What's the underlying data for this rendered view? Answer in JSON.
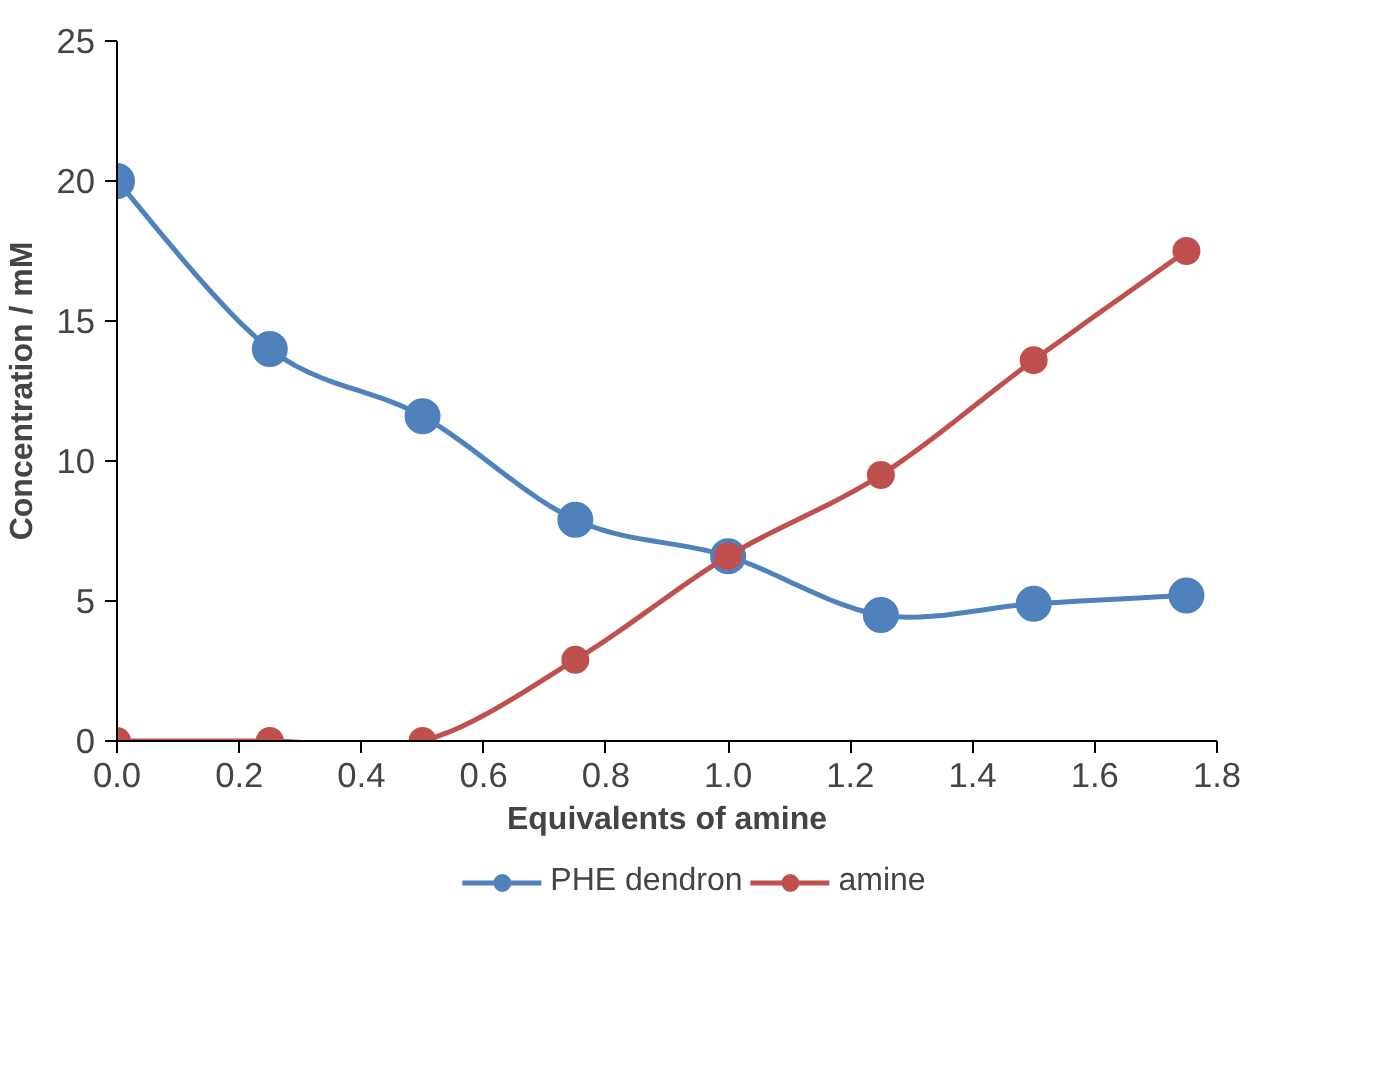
{
  "chart_data": {
    "type": "line",
    "xlabel": "Equivalents of amine",
    "ylabel": "Concentration / mM",
    "x": [
      0,
      0.25,
      0.5,
      0.75,
      1.0,
      1.25,
      1.5,
      1.75
    ],
    "series": [
      {
        "name": "PHE dendron",
        "color": "#4f81bd",
        "values": [
          20,
          14.0,
          11.6,
          7.9,
          6.6,
          4.5,
          4.9,
          5.2
        ]
      },
      {
        "name": "amine",
        "color": "#c0504d",
        "values": [
          0,
          0,
          0,
          2.9,
          6.6,
          9.5,
          13.6,
          17.5
        ]
      }
    ],
    "xlim": [
      0,
      1.8
    ],
    "ylim": [
      0,
      25
    ],
    "xticks": [
      {
        "value": 0,
        "label": "0.0"
      },
      0.2,
      0.4,
      0.6,
      0.8,
      {
        "value": 1.0,
        "label": "1.0"
      },
      1.2,
      1.4,
      1.6,
      1.8
    ],
    "yticks": [
      0,
      5,
      10,
      15,
      20,
      25
    ],
    "marker": "circle",
    "line_style": "solid",
    "legend": "bottom",
    "grid": false
  }
}
